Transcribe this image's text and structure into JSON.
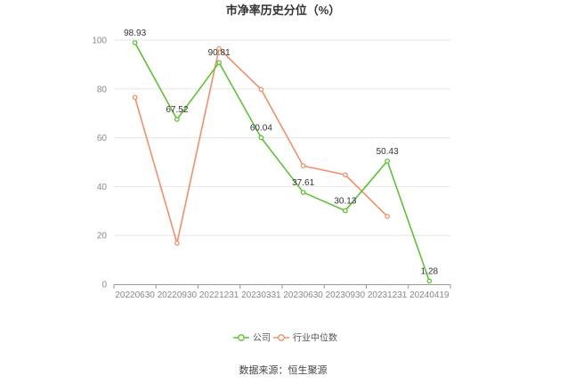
{
  "chart_data": {
    "type": "line",
    "title": "市净率历史分位（%）",
    "categories": [
      "20220630",
      "20220930",
      "20221231",
      "20230331",
      "20230630",
      "20230930",
      "20231231",
      "20240419"
    ],
    "series": [
      {
        "name": "公司",
        "color": "#5ec136",
        "values": [
          98.93,
          67.52,
          90.81,
          60.04,
          37.61,
          30.13,
          50.43,
          1.28
        ],
        "labels": [
          "98.93",
          "67.52",
          "90.81",
          "60.04",
          "37.61",
          "30.13",
          "50.43",
          "1.28"
        ]
      },
      {
        "name": "行业中位数",
        "color": "#f0906a",
        "values": [
          76.5,
          16.8,
          96.5,
          79.8,
          48.5,
          44.8,
          27.8,
          null
        ]
      }
    ],
    "ylim": [
      0,
      100
    ],
    "yticks": [
      0,
      20,
      40,
      60,
      80,
      100
    ],
    "grid": true,
    "legend_position": "bottom"
  },
  "source": {
    "text": "数据来源：恒生聚源"
  }
}
